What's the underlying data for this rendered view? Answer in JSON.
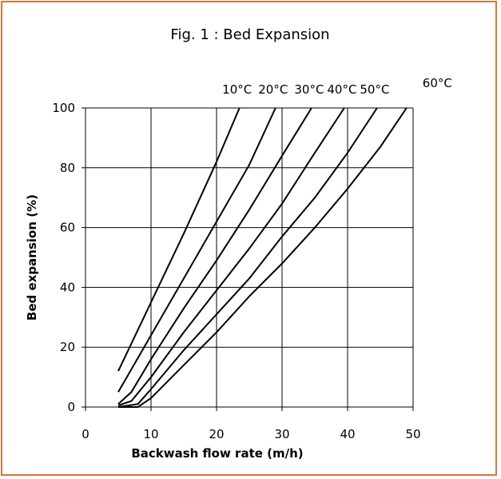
{
  "chart_data": {
    "type": "line",
    "title": "Fig. 1 : Bed Expansion",
    "xlabel": "Backwash flow rate (m/h)",
    "ylabel": "Bed expansion (%)",
    "xlim": [
      0,
      50
    ],
    "ylim": [
      0,
      100
    ],
    "xticks": [
      0,
      10,
      20,
      30,
      40,
      50
    ],
    "yticks": [
      0,
      20,
      40,
      60,
      80,
      100
    ],
    "xtick_labels": [
      "0",
      "10",
      "20",
      "30",
      "40",
      "50"
    ],
    "ytick_labels": [
      "0",
      "20",
      "40",
      "60",
      "80",
      "100"
    ],
    "grid": true,
    "series": [
      {
        "name": "10°C",
        "points": [
          [
            5,
            12
          ],
          [
            10,
            35
          ],
          [
            15,
            58
          ],
          [
            20,
            82
          ],
          [
            23.5,
            100
          ]
        ]
      },
      {
        "name": "20°C",
        "points": [
          [
            5,
            5
          ],
          [
            10,
            24
          ],
          [
            15,
            43
          ],
          [
            20,
            62
          ],
          [
            25,
            81
          ],
          [
            29,
            100
          ]
        ]
      },
      {
        "name": "30°C",
        "points": [
          [
            5,
            1
          ],
          [
            7,
            5
          ],
          [
            10,
            16
          ],
          [
            15,
            33
          ],
          [
            20,
            49
          ],
          [
            25,
            66
          ],
          [
            30,
            84
          ],
          [
            34.5,
            100
          ]
        ]
      },
      {
        "name": "40°C",
        "points": [
          [
            5,
            0.5
          ],
          [
            7,
            2
          ],
          [
            10,
            10
          ],
          [
            15,
            25
          ],
          [
            20,
            39
          ],
          [
            25,
            53
          ],
          [
            30,
            68
          ],
          [
            35,
            85
          ],
          [
            39.5,
            100
          ]
        ]
      },
      {
        "name": "50°C",
        "points": [
          [
            5,
            0
          ],
          [
            8,
            1
          ],
          [
            10,
            6
          ],
          [
            15,
            19
          ],
          [
            20,
            31
          ],
          [
            25,
            43
          ],
          [
            30,
            57
          ],
          [
            35,
            70
          ],
          [
            40,
            85
          ],
          [
            44.5,
            100
          ]
        ]
      },
      {
        "name": "60°C",
        "points": [
          [
            5,
            0
          ],
          [
            8,
            0
          ],
          [
            10,
            3
          ],
          [
            15,
            14
          ],
          [
            20,
            25
          ],
          [
            25,
            37
          ],
          [
            30,
            48
          ],
          [
            35,
            60
          ],
          [
            40,
            73
          ],
          [
            45,
            87
          ],
          [
            49,
            100
          ]
        ]
      }
    ]
  }
}
